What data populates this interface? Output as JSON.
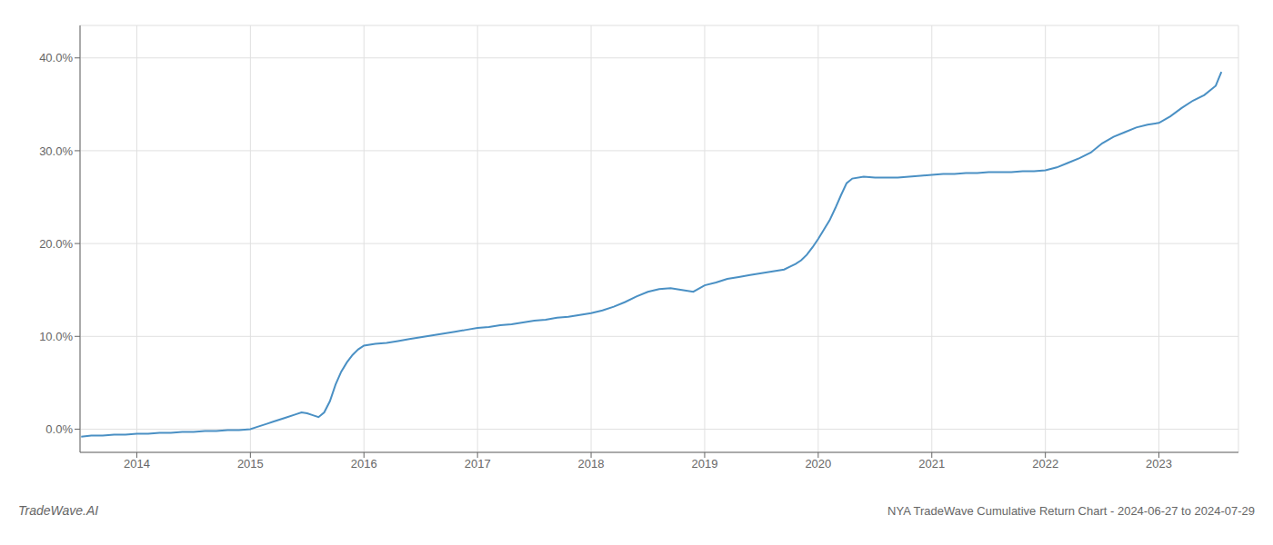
{
  "chart_data": {
    "type": "line",
    "title": "NYA TradeWave Cumulative Return Chart - 2024-06-27 to 2024-07-29",
    "annotations": [
      "TradeWave.AI"
    ],
    "x": [
      2013.51,
      2013.6,
      2013.7,
      2013.8,
      2013.9,
      2014.0,
      2014.1,
      2014.2,
      2014.3,
      2014.4,
      2014.5,
      2014.6,
      2014.7,
      2014.8,
      2014.9,
      2015.0,
      2015.05,
      2015.1,
      2015.15,
      2015.2,
      2015.3,
      2015.4,
      2015.45,
      2015.5,
      2015.55,
      2015.6,
      2015.65,
      2015.7,
      2015.75,
      2015.8,
      2015.85,
      2015.9,
      2015.95,
      2016.0,
      2016.1,
      2016.2,
      2016.3,
      2016.4,
      2016.5,
      2016.6,
      2016.7,
      2016.8,
      2016.9,
      2017.0,
      2017.1,
      2017.2,
      2017.3,
      2017.4,
      2017.5,
      2017.6,
      2017.7,
      2017.8,
      2017.9,
      2018.0,
      2018.1,
      2018.2,
      2018.3,
      2018.4,
      2018.5,
      2018.6,
      2018.7,
      2018.8,
      2018.9,
      2019.0,
      2019.1,
      2019.2,
      2019.3,
      2019.4,
      2019.5,
      2019.6,
      2019.7,
      2019.75,
      2019.8,
      2019.85,
      2019.9,
      2019.95,
      2020.0,
      2020.05,
      2020.1,
      2020.15,
      2020.2,
      2020.25,
      2020.3,
      2020.4,
      2020.5,
      2020.6,
      2020.7,
      2020.8,
      2020.9,
      2021.0,
      2021.1,
      2021.2,
      2021.3,
      2021.4,
      2021.5,
      2021.6,
      2021.7,
      2021.8,
      2021.9,
      2022.0,
      2022.1,
      2022.2,
      2022.3,
      2022.4,
      2022.5,
      2022.6,
      2022.7,
      2022.8,
      2022.9,
      2023.0,
      2023.1,
      2023.2,
      2023.3,
      2023.4,
      2023.5,
      2023.55
    ],
    "values": [
      -0.008,
      -0.007,
      -0.007,
      -0.006,
      -0.006,
      -0.005,
      -0.005,
      -0.004,
      -0.004,
      -0.003,
      -0.003,
      -0.002,
      -0.002,
      -0.001,
      -0.001,
      0.0,
      0.002,
      0.004,
      0.006,
      0.008,
      0.012,
      0.016,
      0.018,
      0.017,
      0.015,
      0.013,
      0.018,
      0.03,
      0.048,
      0.062,
      0.072,
      0.08,
      0.086,
      0.09,
      0.092,
      0.093,
      0.095,
      0.097,
      0.099,
      0.101,
      0.103,
      0.105,
      0.107,
      0.109,
      0.11,
      0.112,
      0.113,
      0.115,
      0.117,
      0.118,
      0.12,
      0.121,
      0.123,
      0.125,
      0.128,
      0.132,
      0.137,
      0.143,
      0.148,
      0.151,
      0.152,
      0.15,
      0.148,
      0.155,
      0.158,
      0.162,
      0.164,
      0.166,
      0.168,
      0.17,
      0.172,
      0.175,
      0.178,
      0.182,
      0.188,
      0.196,
      0.205,
      0.215,
      0.225,
      0.238,
      0.252,
      0.265,
      0.27,
      0.272,
      0.271,
      0.271,
      0.271,
      0.272,
      0.273,
      0.274,
      0.275,
      0.275,
      0.276,
      0.276,
      0.277,
      0.277,
      0.277,
      0.278,
      0.278,
      0.279,
      0.282,
      0.287,
      0.292,
      0.298,
      0.308,
      0.315,
      0.32,
      0.325,
      0.328,
      0.33,
      0.337,
      0.346,
      0.354,
      0.36,
      0.37,
      0.385
    ],
    "color": "#4a90c4",
    "xlim": [
      2013.5,
      2023.7
    ],
    "xticks": [
      2014,
      2015,
      2016,
      2017,
      2018,
      2019,
      2020,
      2021,
      2022,
      2023
    ],
    "ylim": [
      -0.025,
      0.435
    ],
    "yticks": [
      {
        "value": 0.0,
        "label": "0.0%"
      },
      {
        "value": 0.1,
        "label": "10.0%"
      },
      {
        "value": 0.2,
        "label": "20.0%"
      },
      {
        "value": 0.3,
        "label": "30.0%"
      },
      {
        "value": 0.4,
        "label": "40.0%"
      }
    ],
    "grid": true
  }
}
